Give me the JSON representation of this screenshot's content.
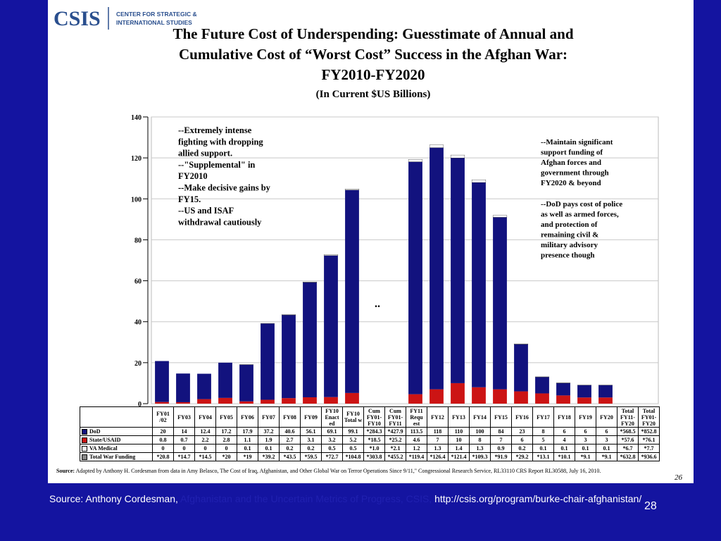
{
  "header": {
    "logo": "CSIS",
    "org_line1": "CENTER FOR STRATEGIC &",
    "org_line2": "INTERNATIONAL STUDIES"
  },
  "chart_data": {
    "type": "bar",
    "title": [
      "The Future Cost of Underspending: Guesstimate of Annual and",
      "Cumulative Cost of “Worst Cost” Success in the Afghan War:",
      "FY2010-FY2020"
    ],
    "subtitle": "(In Current $US Billions)",
    "categories": [
      "FY01 /02",
      "FY03",
      "FY04",
      "FY05",
      "FY06",
      "FY07",
      "FY08",
      "FY09",
      "FY10 Enact ed",
      "FY10 Total w",
      "Cum FY01- FY10",
      "Cum FY01- FY11",
      "FY11 Requ est",
      "FY12",
      "FY13",
      "FY14",
      "FY15",
      "FY16",
      "FY17",
      "FY18",
      "FY19",
      "FY20",
      "Total FY11- FY20",
      "Total FY01- FY20"
    ],
    "series": [
      {
        "name": "DoD",
        "color": "#12127e",
        "values": [
          20,
          14,
          12.4,
          17.2,
          17.9,
          37.2,
          40.6,
          56.1,
          69.1,
          99.1,
          284.3,
          427.9,
          113.5,
          118,
          110,
          100,
          84,
          23,
          8,
          6,
          6,
          6,
          568.5,
          852.8
        ],
        "value_labels": [
          "20",
          "14",
          "12.4",
          "17.2",
          "17.9",
          "37.2",
          "40.6",
          "56.1",
          "69.1",
          "99.1",
          "*284.3",
          "*427.9",
          "113.5",
          "118",
          "110",
          "100",
          "84",
          "23",
          "8",
          "6",
          "6",
          "6",
          "*568.5",
          "*852.8"
        ]
      },
      {
        "name": "State/USAID",
        "color": "#cc1414",
        "values": [
          0.8,
          0.7,
          2.2,
          2.8,
          1.1,
          1.9,
          2.7,
          3.1,
          3.2,
          5.2,
          18.5,
          25.2,
          4.6,
          7,
          10,
          8,
          7,
          6,
          5,
          4,
          3,
          3,
          57.6,
          76.1
        ],
        "value_labels": [
          "0.8",
          "0.7",
          "2.2",
          "2.8",
          "1.1",
          "1.9",
          "2.7",
          "3.1",
          "3.2",
          "5.2",
          "*18.5",
          "*25.2",
          "4.6",
          "7",
          "10",
          "8",
          "7",
          "6",
          "5",
          "4",
          "3",
          "3",
          "*57.6",
          "*76.1"
        ]
      },
      {
        "name": "VA Medical",
        "color": "#ffffff",
        "values": [
          0,
          0,
          0,
          0,
          0.1,
          0.1,
          0.2,
          0.2,
          0.5,
          0.5,
          1.0,
          2.1,
          1.2,
          1.3,
          1.4,
          1.3,
          0.9,
          0.2,
          0.1,
          0.1,
          0.1,
          0.1,
          6.7,
          7.7
        ],
        "value_labels": [
          "0",
          "0",
          "0",
          "0",
          "0.1",
          "0.1",
          "0.2",
          "0.2",
          "0.5",
          "0.5",
          "*1.0",
          "*2.1",
          "1.2",
          "1.3",
          "1.4",
          "1.3",
          "0.9",
          "0.2",
          "0.1",
          "0.1",
          "0.1",
          "0.1",
          "*6.7",
          "*7.7"
        ]
      },
      {
        "name": "Total War Funding",
        "color": "#888888",
        "values": [
          20.8,
          14.7,
          14.5,
          20,
          19,
          39.2,
          43.5,
          59.5,
          72.7,
          104.8,
          303.8,
          455.2,
          119.4,
          126.4,
          121.4,
          109.3,
          91.9,
          29.2,
          13.1,
          10.1,
          9.1,
          9.1,
          632.8,
          936.6
        ],
        "value_labels": [
          "*20.8",
          "*14.7",
          "*14.5",
          "*20",
          "*19",
          "*39.2",
          "*43.5",
          "*59.5",
          "*72.7",
          "*104.8",
          "*303.8",
          "*455.2",
          "*119.4",
          "*126.4",
          "*121.4",
          "*109.3",
          "*91.9",
          "*29.2",
          "*13.1",
          "*10.1",
          "*9.1",
          "*9.1",
          "*632.8",
          "*936.6"
        ]
      }
    ],
    "ylim": [
      0,
      140
    ],
    "yticks": [
      0,
      20,
      40,
      60,
      80,
      100,
      120,
      140
    ],
    "grid": true,
    "annotations": [
      {
        "lines": [
          "--Extremely intense",
          "fighting with dropping",
          "allied support.",
          "--\"Supplemental\" in",
          "FY2010",
          "--Make decisive gains by",
          "FY15.",
          "--US and ISAF",
          "withdrawal cautiously"
        ]
      },
      {
        "lines": [
          "--Maintain significant",
          "support funding of",
          "Afghan forces and",
          "government through",
          "FY2020 & beyond"
        ]
      },
      {
        "lines": [
          "--DoD pays cost of police",
          "as well as armed forces,",
          "and protection of",
          "remaining civil &",
          "military advisory",
          "presence though"
        ]
      },
      {
        "lines": [
          ".."
        ]
      }
    ],
    "source_label": "Source:",
    "source_text": "Adapted by Anthony H. Cordesman from data in Amy Belasco, The Cost of Iraq, Afghanistan, and Other Global War on Terror Operations Since 9/11,\" Congressional Research Service, RL33110 CRS Report RL30588, July 16, 2010.",
    "inner_page": "26"
  },
  "footer": {
    "source_a": "Source: Anthony Cordesman,",
    "source_link": "Afghanistan and the Uncertain Metrics of Progress, CSIS,",
    "source_url": "http://csis.org/program/burke-chair-afghanistan/",
    "page": "28"
  }
}
